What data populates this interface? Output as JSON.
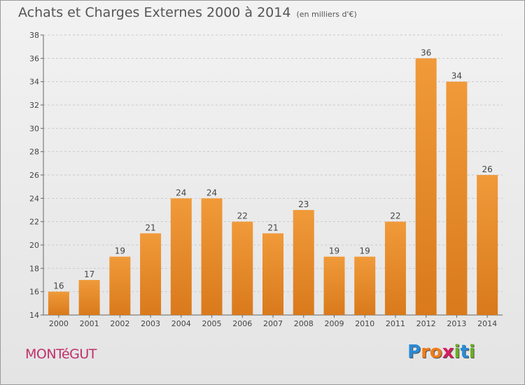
{
  "title": "Achats et Charges Externes 2000 à 2014",
  "subtitle": "(en milliers d'€)",
  "commune": "MONTéGUT",
  "logo": {
    "text": "Proxiti",
    "letters": [
      "P",
      "r",
      "o",
      "x",
      "i",
      "t",
      "i"
    ],
    "colors": [
      "#2a8bd6",
      "#f07d1a",
      "#f07d1a",
      "#d81b60",
      "#6ab023",
      "#2a8bd6",
      "#6ab023"
    ]
  },
  "colors": {
    "bar": "#f09a3a",
    "bar_dark": "#d97a1c",
    "grid": "#c9c9c9",
    "axis": "#666666"
  },
  "chart_data": {
    "type": "bar",
    "categories": [
      "2000",
      "2001",
      "2002",
      "2003",
      "2004",
      "2005",
      "2006",
      "2007",
      "2008",
      "2009",
      "2010",
      "2011",
      "2012",
      "2013",
      "2014"
    ],
    "values": [
      16,
      17,
      19,
      21,
      24,
      24,
      22,
      21,
      23,
      19,
      19,
      22,
      36,
      34,
      26
    ],
    "ylim": [
      14,
      38
    ],
    "yticks": [
      14,
      16,
      18,
      20,
      22,
      24,
      26,
      28,
      30,
      32,
      34,
      36,
      38
    ],
    "grid": true,
    "show_data_labels": true
  }
}
